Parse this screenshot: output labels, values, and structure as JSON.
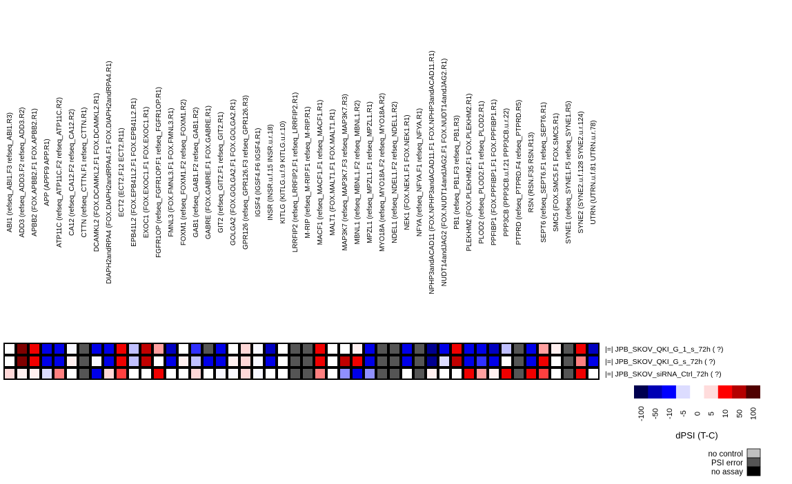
{
  "chart_data": {
    "type": "heatmap",
    "columns": [
      "ABI1 (refseq_ABI1.F3  refseq_ABI1.R3)",
      "ADD3 (refseq_ADD3.F2  refseq_ADD3.R2)",
      "APBB2 (FOX.APBB2.F1  FOX.APBB2.R1)",
      "APP (APPF9  APP.R1)",
      "ATP11C (refseq_ATP11C.F2  refseq_ATP11C.R2)",
      "CA12 (refseq_CA12.F2  refseq_CA12.R2)",
      "CTTN (refseq_CTTN.F1  refseq_CTTN.R1)",
      "DCAMKL2 (FOX.DCAMKL2.F1  FOX.DCAMKL2.R1)",
      "DIAPH2andRPA4 (FOX.DIAPH2andRPA4.F1  FOX.DIAPH2andRPA4.R1)",
      "ECT2 (ECT2.F12  ECT2.R11)",
      "EPB41L2 (FOX.EPB41L2.F1  FOX.EPB41L2.R1)",
      "EXOC1 (FOX.EXOC1.F1  FOX.EXOC1.R1)",
      "FGFR1OP (refseq_FGFR1OP.F1  refseq_FGFR1OP.R1)",
      "FMNL3 (FOX.FMNL3.F1  FOX.FMNL3.R1)",
      "FOXM1 (refseq_FOXM1.F2  refseq_FOXM1.R2)",
      "GAB1 (refseq_GAB1.F2  refseq_GAB1.R2)",
      "GABRE (FOX.GABRE.F1  FOX.GABRE.R1)",
      "GIT2 (refseq_GIT2.F1  refseq_GIT2.R1)",
      "GOLGA2 (FOX.GOLGA2.F1  FOX.GOLGA2.R1)",
      "GPR126 (refseq_GPR126.F3  refseq_GPR126.R3)",
      "IGSF4 (IGSF4.F6  IGSF4.R1)",
      "INSR (INSR.u.f.15  INSR.u.r.18)",
      "KITLG (KITLG.u.f.9  KITLG.u.r.10)",
      "LRRFIP2 (refseq_LRRFIP2.F1  refseq_LRRFIP2.R1)",
      "M-RIP (refseq_M-RIP.F1  refseq_M-RIP.R1)",
      "MACF1 (refseq_MACF1.F1  refseq_MACF1.R1)",
      "MALT1 (FOX.MALT1.F1  FOX.MALT1.R1)",
      "MAP3K7 (refseq_MAP3K7.F3  refseq_MAP3K7.R3)",
      "MBNL1 (refseq_MBNL1.F2  refseq_MBNL1.R2)",
      "MPZL1 (refseq_MPZL1.F1  refseq_MPZL1.R1)",
      "MYO18A (refseq_MYO18A.F2  refseq_MYO18A.R2)",
      "NDEL1 (refseq_NDEL1.F2  refseq_NDEL1.R2)",
      "NEK1 (FOX.NEK1.F1  FOX.NEK1.R1)",
      "NFYA (refseq_NFYA.F1  refseq_NFYA.R1)",
      "NPHP3andACAD11 (FOX.NPHP3andACAD11.F1  FOX.NPHP3andACAD11.R1)",
      "NUDT14andJAG2 (FOX.NUDT14andJAG2.F1  FOX.NUDT14andJAG2.R1)",
      "PB1 (refseq_PB1.F3  refseq_PB1.R3)",
      "PLEKHM2 (FOX.PLEKHM2.F1  FOX.PLEKHM2.R1)",
      "PLOD2 (refseq_PLOD2.F1  refseq_PLOD2.R1)",
      "PPFIBP1 (FOX.PPFIBP1.F1  FOX.PPFIBP1.R1)",
      "PPP3CB (PPP3CB.u.f.21  PPP3CB.u.r.22)",
      "PTPRD (refseq_PTPRD.F4  refseq_PTPRD.R5)",
      "RSN (RSN.F35  RSN.R13)",
      "SEPT6 (refseq_SEPT6.F1  refseq_SEPT6.R1)",
      "SMC5 (FOX.SMC5.F1  FOX.SMC5.R1)",
      "SYNE1 (refseq_SYNE1.F5  refseq_SYNE1.R5)",
      "SYNE2 (SYNE2.u.f.128  SYNE2.u.r.124)",
      "UTRN (UTRN.u.f.81  UTRN.u.r.78)"
    ],
    "rows": [
      "|=| JPB_SKOV_QKI_G_1_s_72h ( ?)",
      "|=| JPB_SKOV_QKI_G_s_72h ( ?)",
      "|=| JPB_SKOV_siRNA_Ctrl_72h ( ?)"
    ],
    "palette": {
      "W": "#ffffff",
      "w": "#f8f8ff",
      "p": "#fff0f0",
      "q": "#ffd8d8",
      "s": "#ffa0a0",
      "t": "#ff8080",
      "u": "#ff4040",
      "R": "#f00000",
      "D": "#c00000",
      "M": "#800000",
      "l": "#dcdcff",
      "L": "#c0c0ff",
      "m": "#9090ff",
      "c": "#3030ff",
      "B": "#0000e8",
      "b": "#0000c0",
      "N": "#000090",
      "G": "#555555"
    },
    "cells": [
      [
        "W",
        "M",
        "R",
        "B",
        "B",
        "w",
        "G",
        "B",
        "B",
        "R",
        "L",
        "D",
        "s",
        "b",
        "W",
        "c",
        "G",
        "B",
        "W",
        "q",
        "w",
        "b",
        "W",
        "G",
        "G",
        "R",
        "W",
        "W",
        "p",
        "B",
        "G",
        "G",
        "B",
        "G",
        "N",
        "B",
        "R",
        "B",
        "B",
        "b",
        "L",
        "G",
        "B",
        "s",
        "p",
        "G",
        "R",
        "b"
      ],
      [
        "W",
        "M",
        "R",
        "B",
        "B",
        "p",
        "G",
        "w",
        "B",
        "R",
        "L",
        "D",
        "W",
        "B",
        "p",
        "L",
        "B",
        "B",
        "p",
        "q",
        "w",
        "B",
        "W",
        "G",
        "G",
        "R",
        "W",
        "D",
        "R",
        "B",
        "G",
        "G",
        "B",
        "G",
        "N",
        "l",
        "D",
        "B",
        "c",
        "B",
        "W",
        "G",
        "B",
        "R",
        "W",
        "G",
        "t",
        "B"
      ],
      [
        "q",
        "p",
        "p",
        "l",
        "t",
        "W",
        "G",
        "B",
        "q",
        "u",
        "W",
        "W",
        "R",
        "W",
        "W",
        "q",
        "W",
        "w",
        "w",
        "q",
        "w",
        "W",
        "W",
        "G",
        "G",
        "t",
        "W",
        "m",
        "B",
        "m",
        "G",
        "G",
        "W",
        "G",
        "p",
        "W",
        "W",
        "R",
        "s",
        "p",
        "R",
        "G",
        "R",
        "u",
        "W",
        "G",
        "R",
        "W"
      ]
    ],
    "colorbar": {
      "ticks": [
        "-100",
        "-50",
        "-10",
        "-5",
        "0",
        "5",
        "10",
        "50",
        "100"
      ],
      "colors": [
        "#00004f",
        "#0000b4",
        "#0000ff",
        "#dcdcff",
        "#ffffff",
        "#ffdcdc",
        "#ff0000",
        "#b40000",
        "#500000"
      ],
      "label": "dPSI (T-C)"
    },
    "status_legend": [
      {
        "label": "no control",
        "color": "#c0c0c0"
      },
      {
        "label": "PSI error",
        "color": "#555555"
      },
      {
        "label": "no assay",
        "color": "#000000"
      }
    ]
  }
}
